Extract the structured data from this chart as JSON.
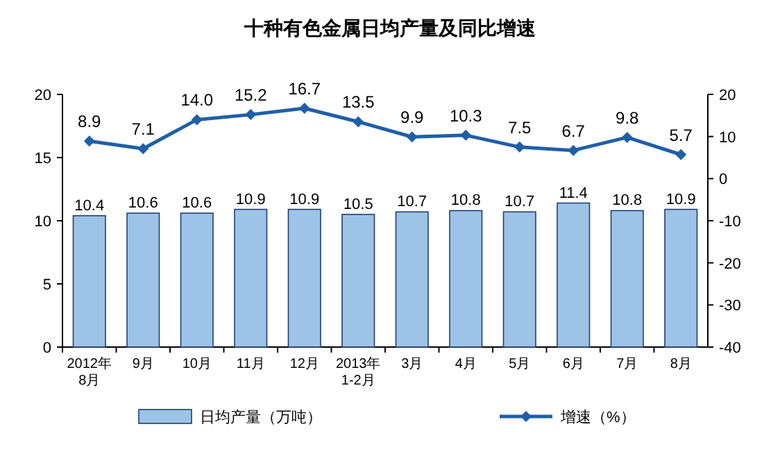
{
  "chart_data": {
    "type": "bar",
    "title": "十种有色金属日均产量及同比增速",
    "categories": [
      "2012年\n8月",
      "9月",
      "10月",
      "11月",
      "12月",
      "2013年\n1-2月",
      "3月",
      "4月",
      "5月",
      "6月",
      "7月",
      "8月"
    ],
    "series": [
      {
        "name": "日均产量（万吨）",
        "color": "#9dc3e6",
        "values": [
          10.4,
          10.6,
          10.6,
          10.9,
          10.9,
          10.5,
          10.7,
          10.8,
          10.7,
          11.4,
          10.8,
          10.9
        ],
        "value_labels": [
          "10.4",
          "10.6",
          "10.6",
          "10.9",
          "10.9",
          "10.5",
          "10.7",
          "10.8",
          "10.7",
          "11.4",
          "10.8",
          "10.9"
        ]
      },
      {
        "name": "增速（%）",
        "type": "line",
        "axis": "y2",
        "color": "#1f5fa8",
        "marker": "diamond",
        "values": [
          8.9,
          7.1,
          14.0,
          15.2,
          16.7,
          13.5,
          9.9,
          10.3,
          7.5,
          6.7,
          9.8,
          5.7
        ],
        "value_labels": [
          "8.9",
          "7.1",
          "14.0",
          "15.2",
          "16.7",
          "13.5",
          "9.9",
          "10.3",
          "7.5",
          "6.7",
          "9.8",
          "5.7"
        ]
      }
    ],
    "ylim": [
      0,
      20
    ],
    "yticks": [
      0,
      5,
      10,
      15,
      20
    ],
    "y2lim": [
      -40,
      20
    ],
    "y2ticks": [
      -40,
      -30,
      -20,
      -10,
      0,
      10,
      20
    ],
    "data_labels": true,
    "grid": false,
    "legend": "bottom"
  }
}
